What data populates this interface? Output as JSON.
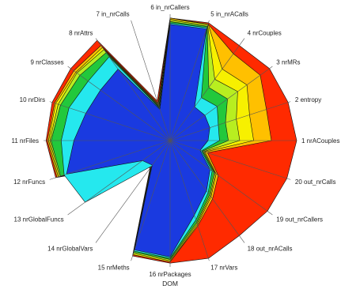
{
  "chart_data": {
    "type": "radar",
    "title": "DOM",
    "axes": [
      "1 nrACouples",
      "2 entropy",
      "3 nrMRs",
      "4 nrCouples",
      "5 in_nrACalls",
      "6 in_nrCallers",
      "7 in_nrCalls",
      "8 nrAttrs",
      "9 nrClasses",
      "10 nrDirs",
      "11 nrFiles",
      "12 nrFuncs",
      "13 nrGlobalFuncs",
      "14 nrGlobalVars",
      "15 nrMeths",
      "16 nrPackages",
      "17 nrVars",
      "18 out_nrACalls",
      "19 out_nrCallers",
      "20 out_nrCalls"
    ],
    "rlim": [
      0,
      1
    ],
    "series_order_back_to_front": "red, orange, yellow, light-green, green, cyan, blue",
    "series": [
      {
        "color": "#ff2a00",
        "values": [
          1.0,
          0.98,
          0.97,
          0.93,
          0.98,
          0.97,
          0.33,
          0.98,
          0.97,
          0.98,
          0.98,
          0.95,
          0.3,
          0.27,
          0.96,
          0.97,
          0.98,
          0.93,
          0.95,
          0.97
        ]
      },
      {
        "color": "#ffc000",
        "values": [
          0.8,
          0.8,
          0.88,
          0.85,
          0.97,
          0.97,
          0.31,
          0.93,
          0.94,
          0.96,
          0.97,
          0.94,
          0.29,
          0.26,
          0.95,
          0.96,
          0.71,
          0.57,
          0.47,
          0.31
        ]
      },
      {
        "color": "#f7f000",
        "values": [
          0.66,
          0.66,
          0.75,
          0.7,
          0.97,
          0.96,
          0.3,
          0.91,
          0.92,
          0.95,
          0.96,
          0.93,
          0.29,
          0.26,
          0.95,
          0.96,
          0.7,
          0.55,
          0.45,
          0.29
        ]
      },
      {
        "color": "#b8ee20",
        "values": [
          0.55,
          0.55,
          0.66,
          0.6,
          0.96,
          0.95,
          0.29,
          0.89,
          0.91,
          0.93,
          0.95,
          0.92,
          0.28,
          0.25,
          0.94,
          0.95,
          0.69,
          0.54,
          0.44,
          0.28
        ]
      },
      {
        "color": "#22c83c",
        "values": [
          0.46,
          0.46,
          0.56,
          0.52,
          0.95,
          0.94,
          0.28,
          0.86,
          0.88,
          0.91,
          0.94,
          0.91,
          0.28,
          0.25,
          0.93,
          0.94,
          0.68,
          0.53,
          0.43,
          0.27
        ]
      },
      {
        "color": "#25e8ee",
        "values": [
          0.39,
          0.4,
          0.46,
          0.42,
          0.94,
          0.93,
          0.27,
          0.82,
          0.8,
          0.84,
          0.86,
          0.88,
          0.83,
          0.25,
          0.92,
          0.93,
          0.66,
          0.51,
          0.41,
          0.26
        ]
      },
      {
        "color": "#1a3ae0",
        "values": [
          0.3,
          0.33,
          0.34,
          0.33,
          0.93,
          0.92,
          0.26,
          0.7,
          0.68,
          0.7,
          0.76,
          0.86,
          0.27,
          0.24,
          0.91,
          0.92,
          0.62,
          0.49,
          0.39,
          0.25
        ]
      }
    ]
  }
}
